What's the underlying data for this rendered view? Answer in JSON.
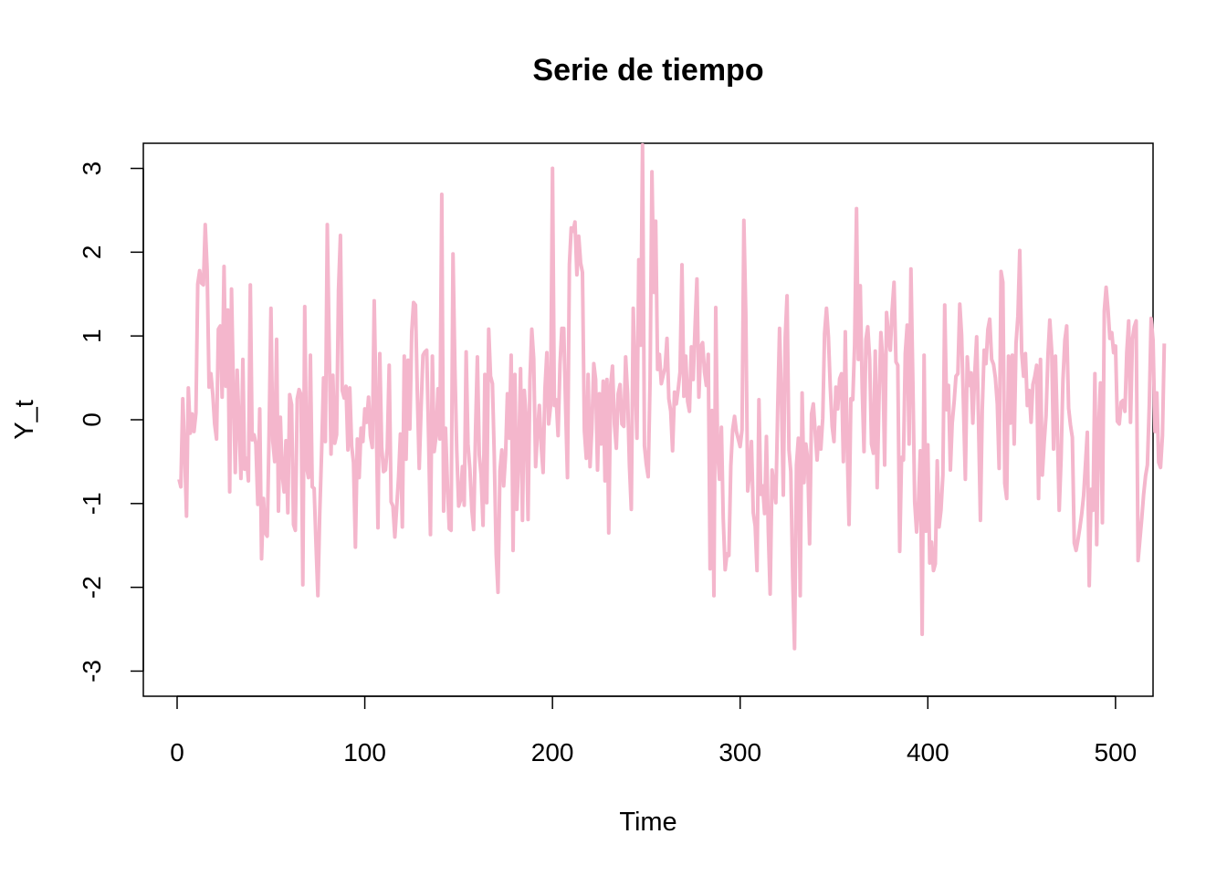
{
  "chart_data": {
    "type": "line",
    "title": "Serie de tiempo",
    "xlabel": "Time",
    "ylabel": "Y_t",
    "xlim": [
      -18,
      520
    ],
    "ylim": [
      -3.3,
      3.3
    ],
    "x_ticks": [
      0,
      100,
      200,
      300,
      400,
      500
    ],
    "y_ticks": [
      -3,
      -2,
      -1,
      0,
      1,
      2,
      3
    ],
    "grid": false,
    "legend": "none",
    "line_color": "#F4B6CC",
    "series": [
      {
        "x_start": 1,
        "values": [
          -0.71,
          -0.8,
          0.25,
          -0.35,
          -1.15,
          0.38,
          -0.16,
          0.07,
          -0.14,
          0.08,
          1.62,
          1.78,
          1.63,
          1.61,
          2.33,
          1.79,
          0.39,
          0.55,
          0.3,
          -0.05,
          -0.23,
          1.08,
          1.12,
          0.27,
          1.83,
          0.4,
          1.31,
          -0.86,
          1.56,
          0.34,
          -0.63,
          0.59,
          -0.05,
          -0.7,
          0.72,
          -0.59,
          -0.46,
          -0.73,
          1.61,
          -0.24,
          -0.18,
          -0.29,
          -1.01,
          0.13,
          -1.66,
          -0.94,
          -1.35,
          -1.39,
          -0.19,
          1.33,
          -0.25,
          -0.5,
          0.96,
          -1.09,
          0.03,
          -0.64,
          -0.86,
          -0.25,
          -1.11,
          0.3,
          0.18,
          -1.25,
          -1.32,
          0.25,
          0.36,
          0.3,
          -1.97,
          1.35,
          -0.57,
          -0.69,
          0.77,
          -0.8,
          -0.82,
          -1.47,
          -2.1,
          -1.12,
          -0.38,
          0.5,
          -0.26,
          2.33,
          0.94,
          -0.41,
          0.53,
          -0.28,
          -0.18,
          1.55,
          2.2,
          0.35,
          0.26,
          0.4,
          -0.36,
          0.38,
          -0.31,
          -0.51,
          -1.52,
          -0.23,
          -0.69,
          -0.1,
          -0.26,
          0.13,
          -0.03,
          0.27,
          -0.19,
          -0.33,
          1.42,
          0.21,
          -1.29,
          0.79,
          -0.32,
          -0.62,
          -0.6,
          -0.34,
          0.65,
          -0.98,
          -1.03,
          -1.4,
          -1.05,
          -0.68,
          -0.17,
          -1.28,
          0.76,
          -0.47,
          0.71,
          -0.11,
          1.05,
          1.4,
          1.37,
          0.33,
          -0.58,
          0.16,
          0.77,
          0.81,
          0.83,
          -0.23,
          -1.37,
          0.76,
          -0.38,
          -0.19,
          0.37,
          -0.23,
          2.69,
          -1.09,
          -0.1,
          -0.74,
          -1.3,
          -1.32,
          1.98,
          0.6,
          -0.36,
          -1.03,
          -0.96,
          -0.56,
          -1.02,
          0.81,
          -0.29,
          -0.59,
          -1.07,
          -1.31,
          -0.13,
          0.75,
          -0.42,
          -0.66,
          -1.26,
          0.54,
          -0.99,
          1.08,
          0.52,
          0.43,
          -0.43,
          -1.6,
          -2.06,
          -0.61,
          -0.36,
          -0.79,
          -0.42,
          0.31,
          -0.22,
          0.77,
          -1.56,
          0.54,
          -1.07,
          -0.44,
          0.61,
          -1.2,
          0.35,
          0.02,
          -1.19,
          0.48,
          1.08,
          0.73,
          -0.56,
          -0.16,
          0.17,
          -0.31,
          -0.63,
          0.36,
          0.8,
          -0.05,
          0.17,
          3.0,
          0.17,
          0.24,
          -0.19,
          0.66,
          1.09,
          1.09,
          0.17,
          -0.69,
          1.85,
          2.29,
          2.25,
          2.36,
          1.73,
          2.19,
          1.87,
          1.76,
          -0.13,
          -0.46,
          0.54,
          -0.56,
          -0.1,
          0.67,
          0.48,
          -0.6,
          0.31,
          -0.29,
          0.46,
          -0.73,
          0.48,
          -1.35,
          0.41,
          0.64,
          -0.05,
          -0.34,
          0.31,
          0.42,
          -0.05,
          -0.08,
          0.75,
          0.31,
          -0.53,
          -1.07,
          1.33,
          0.53,
          -0.22,
          1.91,
          0.89,
          3.28,
          -0.31,
          -0.53,
          -0.68,
          0.49,
          2.96,
          1.52,
          2.37,
          0.6,
          0.78,
          0.43,
          0.53,
          0.62,
          0.97,
          0.25,
          0.1,
          -0.37,
          0.33,
          0.19,
          0.37,
          0.57,
          1.85,
          0.28,
          0.76,
          0.22,
          0.1,
          0.87,
          0.48,
          1.13,
          1.68,
          0.27,
          0.87,
          0.92,
          0.57,
          0.41,
          0.78,
          -1.78,
          0.11,
          -2.1,
          1.34,
          -0.38,
          -0.71,
          -0.09,
          -1.18,
          -1.79,
          -1.6,
          -1.62,
          -0.55,
          -0.12,
          0.04,
          -0.14,
          -0.23,
          -0.32,
          -0.12,
          2.38,
          1.27,
          -0.85,
          -0.64,
          -0.26,
          -1.11,
          -1.27,
          -1.8,
          0.24,
          -0.89,
          -0.79,
          -1.12,
          -0.2,
          -1.34,
          -2.08,
          -0.6,
          -0.79,
          -0.99,
          0.1,
          1.09,
          0.22,
          -0.9,
          0.98,
          1.48,
          -0.36,
          -0.62,
          -1.89,
          -2.73,
          -0.54,
          -0.22,
          -2.1,
          0.32,
          -0.75,
          -0.29,
          -0.47,
          -1.48,
          0.07,
          0.19,
          -0.16,
          -0.48,
          -0.09,
          -0.35,
          0.02,
          1.03,
          1.33,
          0.99,
          0.4,
          -0.08,
          -0.26,
          0.39,
          0.13,
          0.49,
          0.55,
          -0.5,
          1.05,
          -0.28,
          -1.25,
          0.25,
          0.24,
          0.89,
          2.52,
          0.72,
          1.6,
          0.38,
          -0.38,
          0.96,
          1.11,
          0.72,
          -0.29,
          -0.4,
          0.82,
          -0.81,
          0.28,
          1.04,
          0.7,
          -0.54,
          1.28,
          1.01,
          0.83,
          1.31,
          1.64,
          0.69,
          0.65,
          -1.57,
          -0.45,
          -0.48,
          0.79,
          1.13,
          -0.29,
          1.8,
          0.46,
          -0.98,
          -1.34,
          -1.0,
          -0.37,
          -2.56,
          0.77,
          -1.33,
          -0.3,
          -1.71,
          -1.46,
          -1.8,
          -1.72,
          -0.49,
          -1.28,
          -1.08,
          -0.66,
          1.37,
          0.12,
          0.41,
          -0.6,
          -0.04,
          0.21,
          0.52,
          0.55,
          1.38,
          1.01,
          0.15,
          -0.71,
          0.75,
          0.41,
          0.56,
          -0.04,
          0.55,
          0.99,
          0.01,
          -1.2,
          0.11,
          0.83,
          0.67,
          1.08,
          1.2,
          0.72,
          0.66,
          0.5,
          0.19,
          -0.58,
          1.77,
          1.64,
          -0.76,
          -0.94,
          0.76,
          -0.04,
          0.77,
          -0.29,
          0.91,
          1.24,
          2.02,
          0.8,
          0.52,
          0.79,
          0.17,
          0.35,
          -0.03,
          0.42,
          0.52,
          0.65,
          -0.94,
          0.72,
          -0.66,
          -0.26,
          0.05,
          0.77,
          1.19,
          0.82,
          -0.35,
          0.76,
          -0.12,
          -1.08,
          -0.45,
          0.47,
          0.95,
          1.12,
          0.14,
          -0.06,
          -0.21,
          -1.47,
          -1.56,
          -1.43,
          -1.29,
          -1.12,
          -0.91,
          -0.53,
          -0.15,
          -1.98,
          -0.83,
          -1.08,
          0.55,
          -1.49,
          -0.09,
          0.44,
          -1.23,
          1.3,
          1.58,
          1.31,
          0.97,
          1.04,
          0.8,
          0.88,
          -0.02,
          -0.05,
          0.21,
          0.23,
          0.1,
          0.8,
          1.18,
          -0.03,
          0.96,
          1.11,
          1.18,
          -1.68,
          -1.43,
          -1.17,
          -0.89,
          -0.67,
          -0.54,
          0.18,
          1.21,
          0.95,
          -0.14,
          0.32,
          -0.51,
          -0.57,
          -0.19,
          0.91
        ]
      }
    ]
  }
}
